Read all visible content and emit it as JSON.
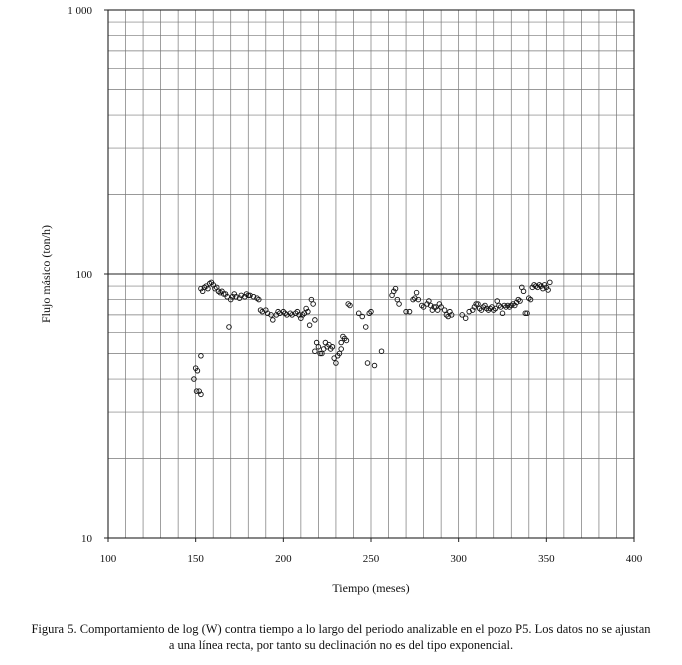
{
  "chart_data": {
    "type": "scatter",
    "xlabel": "Tiempo (meses)",
    "ylabel": "Flujo másico (ton/h)",
    "xlim": [
      100,
      400
    ],
    "ylim": [
      10,
      1000
    ],
    "yscale": "log",
    "grid": true,
    "x_ticks": [
      "100",
      "150",
      "200",
      "250",
      "300",
      "350",
      "400"
    ],
    "y_ticks": [
      "10",
      "100",
      "1 000"
    ],
    "series": [
      {
        "marker": "open-circle",
        "points": [
          [
            149,
            40
          ],
          [
            150,
            44
          ],
          [
            150.5,
            36
          ],
          [
            151,
            43
          ],
          [
            152,
            36
          ],
          [
            153,
            35
          ],
          [
            153,
            49
          ],
          [
            153,
            88
          ],
          [
            154,
            86
          ],
          [
            155,
            89
          ],
          [
            156,
            90
          ],
          [
            157,
            88
          ],
          [
            158,
            92
          ],
          [
            159,
            93
          ],
          [
            160,
            91
          ],
          [
            161,
            88
          ],
          [
            162,
            89
          ],
          [
            163,
            86
          ],
          [
            164,
            85
          ],
          [
            165,
            86
          ],
          [
            166,
            84
          ],
          [
            167,
            84
          ],
          [
            168,
            82
          ],
          [
            169,
            63
          ],
          [
            170,
            80
          ],
          [
            171,
            82
          ],
          [
            172,
            84
          ],
          [
            173,
            82
          ],
          [
            175,
            81
          ],
          [
            176,
            83
          ],
          [
            178,
            82
          ],
          [
            179,
            84
          ],
          [
            180,
            83
          ],
          [
            181,
            83
          ],
          [
            183,
            82
          ],
          [
            185,
            81
          ],
          [
            186,
            80
          ],
          [
            187,
            73
          ],
          [
            188,
            72
          ],
          [
            190,
            73
          ],
          [
            191,
            71
          ],
          [
            193,
            70
          ],
          [
            194,
            67
          ],
          [
            196,
            70
          ],
          [
            197,
            72
          ],
          [
            198,
            71
          ],
          [
            200,
            72
          ],
          [
            201,
            71
          ],
          [
            202,
            70
          ],
          [
            204,
            71
          ],
          [
            205,
            70
          ],
          [
            207,
            71
          ],
          [
            208,
            72
          ],
          [
            209,
            70
          ],
          [
            210,
            68
          ],
          [
            211,
            70
          ],
          [
            212,
            71
          ],
          [
            213,
            74
          ],
          [
            214,
            72
          ],
          [
            215,
            64
          ],
          [
            216,
            80
          ],
          [
            217,
            77
          ],
          [
            218,
            67
          ],
          [
            218,
            51
          ],
          [
            219,
            55
          ],
          [
            220,
            53
          ],
          [
            221,
            50
          ],
          [
            222,
            50
          ],
          [
            223,
            52
          ],
          [
            224,
            55
          ],
          [
            225,
            53
          ],
          [
            226,
            54
          ],
          [
            227,
            52
          ],
          [
            228,
            53
          ],
          [
            229,
            48
          ],
          [
            230,
            46
          ],
          [
            231,
            49
          ],
          [
            232,
            50
          ],
          [
            233,
            52
          ],
          [
            233,
            55
          ],
          [
            234,
            58
          ],
          [
            235,
            57
          ],
          [
            236,
            56
          ],
          [
            237,
            77
          ],
          [
            238,
            76
          ],
          [
            243,
            71
          ],
          [
            245,
            69
          ],
          [
            247,
            63
          ],
          [
            248,
            46
          ],
          [
            249,
            71
          ],
          [
            250,
            72
          ],
          [
            252,
            45
          ],
          [
            256,
            51
          ],
          [
            262,
            83
          ],
          [
            263,
            86
          ],
          [
            264,
            88
          ],
          [
            265,
            80
          ],
          [
            266,
            77
          ],
          [
            270,
            72
          ],
          [
            272,
            72
          ],
          [
            274,
            80
          ],
          [
            275,
            81
          ],
          [
            276,
            85
          ],
          [
            277,
            80
          ],
          [
            279,
            76
          ],
          [
            280,
            75
          ],
          [
            282,
            77
          ],
          [
            283,
            79
          ],
          [
            284,
            76
          ],
          [
            285,
            73
          ],
          [
            286,
            75
          ],
          [
            287,
            75
          ],
          [
            288,
            73
          ],
          [
            289,
            77
          ],
          [
            290,
            75
          ],
          [
            292,
            73
          ],
          [
            293,
            70
          ],
          [
            294,
            69
          ],
          [
            295,
            72
          ],
          [
            296,
            70
          ],
          [
            302,
            70
          ],
          [
            304,
            68
          ],
          [
            306,
            72
          ],
          [
            308,
            73
          ],
          [
            309,
            75
          ],
          [
            310,
            77
          ],
          [
            311,
            77
          ],
          [
            312,
            74
          ],
          [
            313,
            73
          ],
          [
            314,
            75
          ],
          [
            315,
            76
          ],
          [
            316,
            74
          ],
          [
            317,
            73
          ],
          [
            318,
            74
          ],
          [
            319,
            75
          ],
          [
            320,
            73
          ],
          [
            321,
            74
          ],
          [
            322,
            79
          ],
          [
            323,
            76
          ],
          [
            324,
            75
          ],
          [
            325,
            71
          ],
          [
            326,
            76
          ],
          [
            327,
            75
          ],
          [
            328,
            76
          ],
          [
            329,
            75
          ],
          [
            330,
            76
          ],
          [
            331,
            77
          ],
          [
            332,
            76
          ],
          [
            333,
            78
          ],
          [
            334,
            80
          ],
          [
            335,
            79
          ],
          [
            336,
            89
          ],
          [
            337,
            86
          ],
          [
            338,
            71
          ],
          [
            339,
            71
          ],
          [
            340,
            81
          ],
          [
            341,
            80
          ],
          [
            342,
            89
          ],
          [
            343,
            91
          ],
          [
            344,
            90
          ],
          [
            345,
            89
          ],
          [
            346,
            91
          ],
          [
            347,
            90
          ],
          [
            348,
            88
          ],
          [
            349,
            91
          ],
          [
            350,
            89
          ],
          [
            351,
            87
          ],
          [
            352,
            93
          ]
        ]
      }
    ]
  },
  "caption": {
    "line1": "Figura 5. Comportamiento de log (W) contra tiempo a lo largo del periodo analizable en el pozo P5. Los datos no se ajustan",
    "line2": "a una línea recta, por tanto su declinación no es del tipo exponencial."
  },
  "colors": {
    "axis": "#222222",
    "grid": "#777777",
    "marker": "#111111",
    "text": "#111111"
  }
}
